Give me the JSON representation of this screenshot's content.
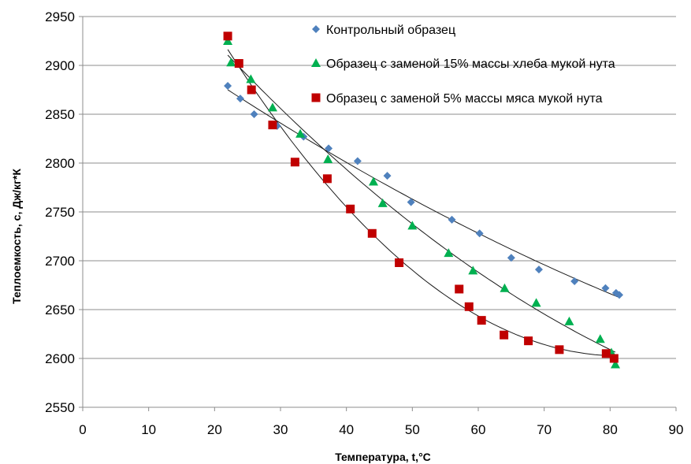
{
  "chart_data": {
    "type": "scatter",
    "xlabel": "Температура, t,°C",
    "ylabel": "Теплоемкость, с, Дж/кг*К",
    "xlim": [
      0,
      90
    ],
    "ylim": [
      2550,
      2950
    ],
    "xticks": [
      0,
      10,
      20,
      30,
      40,
      50,
      60,
      70,
      80,
      90
    ],
    "yticks": [
      2550,
      2600,
      2650,
      2700,
      2750,
      2800,
      2850,
      2900,
      2950
    ],
    "grid": "horizontal",
    "legend_position": "top-right",
    "trendlines": true,
    "series": [
      {
        "name": "Контрольный образец",
        "marker": "diamond",
        "color": "#4f81bd",
        "points": [
          [
            22,
            2879
          ],
          [
            23.9,
            2866
          ],
          [
            26,
            2850
          ],
          [
            29.5,
            2838
          ],
          [
            33.5,
            2827
          ],
          [
            37.3,
            2815
          ],
          [
            41.7,
            2802
          ],
          [
            46.2,
            2787
          ],
          [
            49.8,
            2760
          ],
          [
            56,
            2742
          ],
          [
            60.2,
            2728
          ],
          [
            65,
            2703
          ],
          [
            69.2,
            2691
          ],
          [
            74.6,
            2679
          ],
          [
            79.3,
            2672
          ],
          [
            80.9,
            2667
          ],
          [
            81.4,
            2665
          ]
        ]
      },
      {
        "name": "Образец с заменой 15% массы хлеба мукой нута",
        "marker": "triangle",
        "color": "#00b050",
        "points": [
          [
            22,
            2925
          ],
          [
            22.5,
            2903
          ],
          [
            25.5,
            2886
          ],
          [
            28.8,
            2857
          ],
          [
            33,
            2830
          ],
          [
            37.2,
            2804
          ],
          [
            44.1,
            2781
          ],
          [
            45.5,
            2759
          ],
          [
            50,
            2736
          ],
          [
            55.5,
            2708
          ],
          [
            59.2,
            2690
          ],
          [
            64,
            2672
          ],
          [
            68.8,
            2657
          ],
          [
            73.8,
            2638
          ],
          [
            78.5,
            2620
          ],
          [
            80.2,
            2606
          ],
          [
            80.8,
            2594
          ]
        ]
      },
      {
        "name": "Образец с заменой 5% массы мяса мукой нута",
        "marker": "square",
        "color": "#c00000",
        "points": [
          [
            22,
            2930
          ],
          [
            23.7,
            2902
          ],
          [
            25.6,
            2875
          ],
          [
            28.8,
            2839
          ],
          [
            32.2,
            2801
          ],
          [
            37.1,
            2784
          ],
          [
            40.6,
            2753
          ],
          [
            43.9,
            2728
          ],
          [
            48,
            2698
          ],
          [
            57.1,
            2671
          ],
          [
            58.6,
            2653
          ],
          [
            60.5,
            2639
          ],
          [
            63.9,
            2624
          ],
          [
            67.6,
            2618
          ],
          [
            72.3,
            2609
          ],
          [
            79.4,
            2605
          ],
          [
            80.6,
            2600
          ]
        ]
      }
    ]
  }
}
